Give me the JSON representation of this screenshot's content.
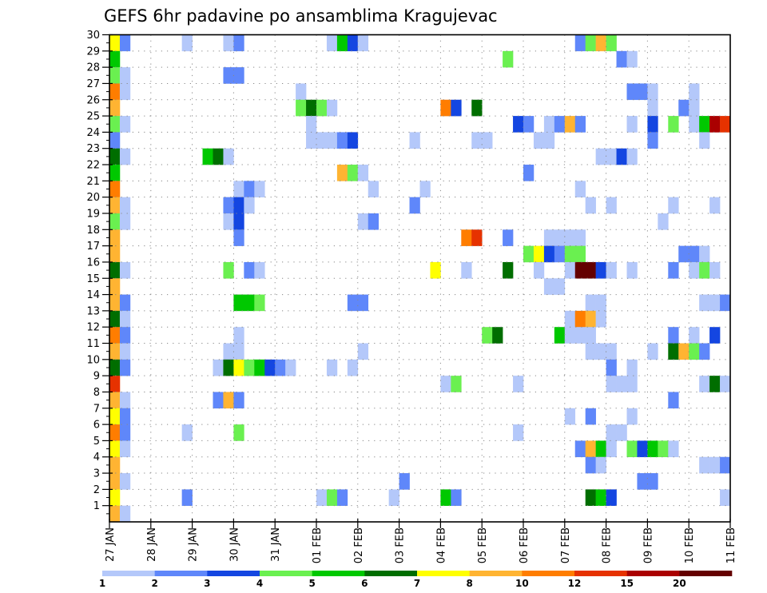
{
  "chart_data": {
    "type": "heatmap",
    "title": "GEFS 6hr padavine po ansamblima Kragujevac",
    "xlabel": "",
    "ylabel": "",
    "x_tick_labels": [
      "27 JAN",
      "28 JAN",
      "29 JAN",
      "30 JAN",
      "31 JAN",
      "01 FEB",
      "02 FEB",
      "03 FEB",
      "04 FEB",
      "05 FEB",
      "06 FEB",
      "07 FEB",
      "08 FEB",
      "09 FEB",
      "10 FEB",
      "11 FEB"
    ],
    "x_steps_per_day": 4,
    "x_steps_total": 60,
    "y_tick_labels": [
      "1",
      "2",
      "3",
      "4",
      "5",
      "6",
      "7",
      "8",
      "9",
      "10",
      "11",
      "12",
      "13",
      "14",
      "15",
      "16",
      "17",
      "18",
      "19",
      "20",
      "21",
      "22",
      "23",
      "24",
      "25",
      "26",
      "27",
      "28",
      "29",
      "30"
    ],
    "y_range": [
      0,
      30
    ],
    "grid": true,
    "colorbar": {
      "placement": "bottom",
      "labels": [
        "1",
        "2",
        "3",
        "4",
        "5",
        "6",
        "7",
        "8",
        "10",
        "12",
        "15",
        "20"
      ],
      "colors": [
        "#b4c8fa",
        "#5f87fa",
        "#1446e1",
        "#6af050",
        "#00c800",
        "#006e00",
        "#ffff00",
        "#ffb432",
        "#ff7d00",
        "#e63200",
        "#aa0000",
        "#640000"
      ]
    },
    "cells_format": [
      "member",
      "step",
      "bin"
    ],
    "cells": [
      [
        30,
        0,
        6
      ],
      [
        29,
        0,
        4
      ],
      [
        28,
        0,
        3
      ],
      [
        27,
        0,
        8
      ],
      [
        26,
        0,
        7
      ],
      [
        25,
        0,
        3
      ],
      [
        24,
        0,
        1
      ],
      [
        23,
        0,
        5
      ],
      [
        22,
        0,
        4
      ],
      [
        21,
        0,
        8
      ],
      [
        20,
        0,
        7
      ],
      [
        19,
        0,
        3
      ],
      [
        18,
        0,
        7
      ],
      [
        17,
        0,
        7
      ],
      [
        16,
        0,
        5
      ],
      [
        15,
        0,
        7
      ],
      [
        14,
        0,
        7
      ],
      [
        13,
        0,
        5
      ],
      [
        12,
        0,
        8
      ],
      [
        11,
        0,
        7
      ],
      [
        10,
        0,
        5
      ],
      [
        9,
        0,
        9
      ],
      [
        8,
        0,
        7
      ],
      [
        7,
        0,
        6
      ],
      [
        6,
        0,
        8
      ],
      [
        5,
        0,
        6
      ],
      [
        4,
        0,
        7
      ],
      [
        3,
        0,
        7
      ],
      [
        2,
        0,
        6
      ],
      [
        1,
        0,
        7
      ],
      [
        30,
        1,
        1
      ],
      [
        28,
        1,
        0
      ],
      [
        27,
        1,
        0
      ],
      [
        25,
        1,
        0
      ],
      [
        23,
        1,
        0
      ],
      [
        20,
        1,
        0
      ],
      [
        19,
        1,
        0
      ],
      [
        16,
        1,
        0
      ],
      [
        14,
        1,
        1
      ],
      [
        13,
        1,
        0
      ],
      [
        12,
        1,
        1
      ],
      [
        11,
        1,
        0
      ],
      [
        10,
        1,
        1
      ],
      [
        8,
        1,
        0
      ],
      [
        7,
        1,
        1
      ],
      [
        6,
        1,
        1
      ],
      [
        5,
        1,
        0
      ],
      [
        3,
        1,
        0
      ],
      [
        1,
        1,
        0
      ],
      [
        30,
        7,
        0
      ],
      [
        30,
        11,
        0
      ],
      [
        30,
        12,
        1
      ],
      [
        30,
        21,
        0
      ],
      [
        30,
        22,
        4
      ],
      [
        30,
        23,
        2
      ],
      [
        30,
        24,
        0
      ],
      [
        30,
        45,
        1
      ],
      [
        30,
        46,
        3
      ],
      [
        30,
        47,
        7
      ],
      [
        30,
        48,
        3
      ],
      [
        29,
        38,
        3
      ],
      [
        29,
        49,
        1
      ],
      [
        29,
        50,
        0
      ],
      [
        28,
        11,
        1
      ],
      [
        28,
        12,
        1
      ],
      [
        27,
        18,
        0
      ],
      [
        27,
        50,
        1
      ],
      [
        27,
        51,
        1
      ],
      [
        27,
        52,
        0
      ],
      [
        27,
        56,
        0
      ],
      [
        26,
        18,
        3
      ],
      [
        26,
        19,
        5
      ],
      [
        26,
        20,
        3
      ],
      [
        26,
        21,
        0
      ],
      [
        26,
        32,
        8
      ],
      [
        26,
        33,
        2
      ],
      [
        26,
        35,
        5
      ],
      [
        26,
        52,
        0
      ],
      [
        26,
        55,
        1
      ],
      [
        26,
        56,
        0
      ],
      [
        25,
        19,
        0
      ],
      [
        25,
        39,
        2
      ],
      [
        25,
        40,
        1
      ],
      [
        25,
        42,
        0
      ],
      [
        25,
        43,
        1
      ],
      [
        25,
        44,
        7
      ],
      [
        25,
        45,
        1
      ],
      [
        25,
        50,
        0
      ],
      [
        25,
        52,
        2
      ],
      [
        25,
        54,
        3
      ],
      [
        25,
        56,
        0
      ],
      [
        25,
        57,
        4
      ],
      [
        25,
        58,
        10
      ],
      [
        25,
        59,
        9
      ],
      [
        24,
        19,
        0
      ],
      [
        24,
        20,
        0
      ],
      [
        24,
        21,
        0
      ],
      [
        24,
        22,
        1
      ],
      [
        24,
        23,
        2
      ],
      [
        24,
        29,
        0
      ],
      [
        24,
        35,
        0
      ],
      [
        24,
        36,
        0
      ],
      [
        24,
        41,
        0
      ],
      [
        24,
        42,
        0
      ],
      [
        24,
        52,
        1
      ],
      [
        24,
        57,
        0
      ],
      [
        23,
        9,
        4
      ],
      [
        23,
        10,
        5
      ],
      [
        23,
        11,
        0
      ],
      [
        23,
        47,
        0
      ],
      [
        23,
        48,
        0
      ],
      [
        23,
        49,
        2
      ],
      [
        23,
        50,
        0
      ],
      [
        22,
        22,
        7
      ],
      [
        22,
        23,
        3
      ],
      [
        22,
        24,
        0
      ],
      [
        22,
        40,
        1
      ],
      [
        21,
        12,
        0
      ],
      [
        21,
        13,
        1
      ],
      [
        21,
        14,
        0
      ],
      [
        21,
        25,
        0
      ],
      [
        21,
        30,
        0
      ],
      [
        21,
        45,
        0
      ],
      [
        20,
        11,
        1
      ],
      [
        20,
        12,
        2
      ],
      [
        20,
        13,
        0
      ],
      [
        20,
        29,
        1
      ],
      [
        20,
        46,
        0
      ],
      [
        20,
        48,
        0
      ],
      [
        20,
        54,
        0
      ],
      [
        20,
        58,
        0
      ],
      [
        19,
        11,
        0
      ],
      [
        19,
        12,
        2
      ],
      [
        19,
        24,
        0
      ],
      [
        19,
        25,
        1
      ],
      [
        19,
        53,
        0
      ],
      [
        18,
        12,
        1
      ],
      [
        18,
        34,
        8
      ],
      [
        18,
        35,
        9
      ],
      [
        18,
        38,
        1
      ],
      [
        18,
        42,
        0
      ],
      [
        18,
        43,
        0
      ],
      [
        18,
        44,
        0
      ],
      [
        18,
        45,
        0
      ],
      [
        17,
        40,
        3
      ],
      [
        17,
        41,
        6
      ],
      [
        17,
        42,
        2
      ],
      [
        17,
        43,
        1
      ],
      [
        17,
        44,
        3
      ],
      [
        17,
        45,
        3
      ],
      [
        17,
        55,
        1
      ],
      [
        17,
        56,
        1
      ],
      [
        17,
        57,
        0
      ],
      [
        16,
        11,
        3
      ],
      [
        16,
        13,
        1
      ],
      [
        16,
        14,
        0
      ],
      [
        16,
        31,
        6
      ],
      [
        16,
        34,
        0
      ],
      [
        16,
        38,
        5
      ],
      [
        16,
        41,
        0
      ],
      [
        16,
        44,
        0
      ],
      [
        16,
        45,
        11
      ],
      [
        16,
        46,
        11
      ],
      [
        16,
        47,
        2
      ],
      [
        16,
        48,
        0
      ],
      [
        16,
        50,
        0
      ],
      [
        16,
        54,
        1
      ],
      [
        16,
        56,
        0
      ],
      [
        16,
        57,
        3
      ],
      [
        16,
        58,
        0
      ],
      [
        15,
        42,
        0
      ],
      [
        15,
        43,
        0
      ],
      [
        14,
        12,
        4
      ],
      [
        14,
        13,
        4
      ],
      [
        14,
        14,
        3
      ],
      [
        14,
        23,
        1
      ],
      [
        14,
        24,
        1
      ],
      [
        14,
        46,
        0
      ],
      [
        14,
        47,
        0
      ],
      [
        14,
        57,
        0
      ],
      [
        14,
        58,
        0
      ],
      [
        14,
        59,
        1
      ],
      [
        13,
        44,
        0
      ],
      [
        13,
        45,
        8
      ],
      [
        13,
        46,
        7
      ],
      [
        13,
        47,
        0
      ],
      [
        12,
        12,
        0
      ],
      [
        12,
        36,
        3
      ],
      [
        12,
        37,
        5
      ],
      [
        12,
        43,
        4
      ],
      [
        12,
        44,
        0
      ],
      [
        12,
        45,
        0
      ],
      [
        12,
        46,
        0
      ],
      [
        12,
        54,
        1
      ],
      [
        12,
        56,
        0
      ],
      [
        12,
        58,
        2
      ],
      [
        11,
        11,
        0
      ],
      [
        11,
        12,
        0
      ],
      [
        11,
        24,
        0
      ],
      [
        11,
        46,
        0
      ],
      [
        11,
        47,
        0
      ],
      [
        11,
        48,
        0
      ],
      [
        11,
        52,
        0
      ],
      [
        11,
        54,
        5
      ],
      [
        11,
        55,
        7
      ],
      [
        11,
        56,
        3
      ],
      [
        11,
        57,
        1
      ],
      [
        10,
        10,
        0
      ],
      [
        10,
        11,
        5
      ],
      [
        10,
        12,
        6
      ],
      [
        10,
        13,
        3
      ],
      [
        10,
        14,
        4
      ],
      [
        10,
        15,
        2
      ],
      [
        10,
        16,
        1
      ],
      [
        10,
        17,
        0
      ],
      [
        10,
        21,
        0
      ],
      [
        10,
        23,
        0
      ],
      [
        10,
        48,
        1
      ],
      [
        10,
        50,
        0
      ],
      [
        9,
        32,
        0
      ],
      [
        9,
        33,
        3
      ],
      [
        9,
        39,
        0
      ],
      [
        9,
        48,
        0
      ],
      [
        9,
        49,
        0
      ],
      [
        9,
        50,
        0
      ],
      [
        9,
        57,
        0
      ],
      [
        9,
        58,
        5
      ],
      [
        9,
        59,
        0
      ],
      [
        8,
        10,
        1
      ],
      [
        8,
        11,
        7
      ],
      [
        8,
        12,
        1
      ],
      [
        8,
        54,
        1
      ],
      [
        7,
        44,
        0
      ],
      [
        7,
        46,
        1
      ],
      [
        7,
        50,
        0
      ],
      [
        6,
        7,
        0
      ],
      [
        6,
        12,
        3
      ],
      [
        6,
        39,
        0
      ],
      [
        6,
        48,
        0
      ],
      [
        6,
        49,
        0
      ],
      [
        5,
        45,
        1
      ],
      [
        5,
        46,
        7
      ],
      [
        5,
        47,
        4
      ],
      [
        5,
        48,
        0
      ],
      [
        5,
        50,
        3
      ],
      [
        5,
        51,
        2
      ],
      [
        5,
        52,
        4
      ],
      [
        5,
        53,
        3
      ],
      [
        5,
        54,
        0
      ],
      [
        4,
        46,
        1
      ],
      [
        4,
        47,
        0
      ],
      [
        4,
        57,
        0
      ],
      [
        4,
        58,
        0
      ],
      [
        4,
        59,
        1
      ],
      [
        3,
        28,
        1
      ],
      [
        3,
        51,
        1
      ],
      [
        3,
        52,
        1
      ],
      [
        2,
        7,
        1
      ],
      [
        2,
        20,
        0
      ],
      [
        2,
        21,
        3
      ],
      [
        2,
        22,
        1
      ],
      [
        2,
        27,
        0
      ],
      [
        2,
        32,
        4
      ],
      [
        2,
        33,
        1
      ],
      [
        2,
        46,
        5
      ],
      [
        2,
        47,
        4
      ],
      [
        2,
        48,
        2
      ],
      [
        2,
        59,
        0
      ]
    ]
  }
}
